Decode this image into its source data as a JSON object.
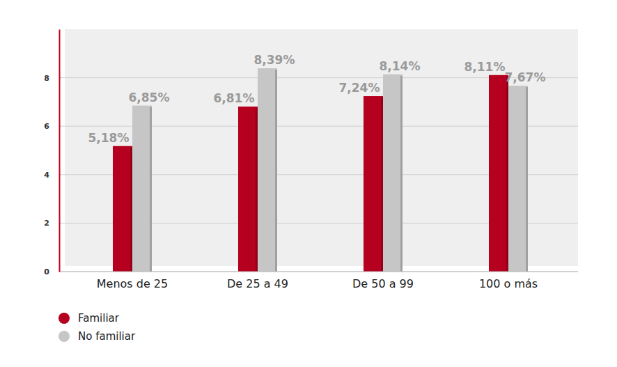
{
  "chart_data": {
    "type": "bar",
    "categories": [
      "Menos de 25",
      "De 25 a 49",
      "De 50 a 99",
      "100 o más"
    ],
    "series": [
      {
        "name": "Familiar",
        "color": "#b5001f",
        "values": [
          5.18,
          6.81,
          7.24,
          8.11
        ],
        "value_labels": [
          "5,18%",
          "6,81%",
          "7,24%",
          "8,11%"
        ]
      },
      {
        "name": "No familiar",
        "color": "#c6c6c6",
        "values": [
          6.85,
          8.39,
          8.14,
          7.67
        ],
        "value_labels": [
          "6,85%",
          "8,39%",
          "8,14%",
          "7,67%"
        ]
      }
    ],
    "ylim": [
      0,
      10
    ],
    "yticks": [
      0,
      2,
      4,
      6,
      8
    ],
    "grid": true,
    "data_labels": true,
    "legend": "bottom"
  }
}
